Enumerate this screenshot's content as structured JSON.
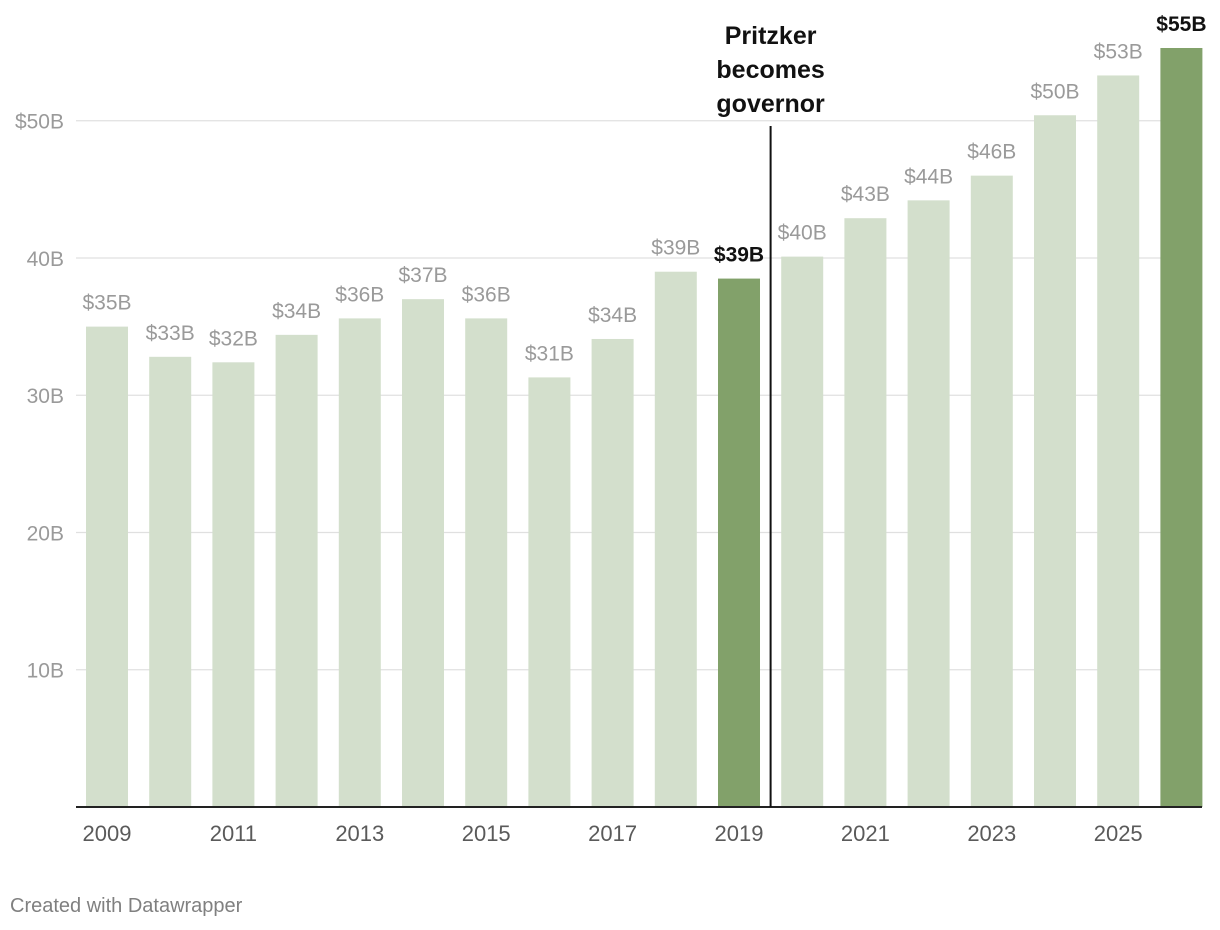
{
  "colors": {
    "bar": "#d3dfcc",
    "highlight": "#82a16a"
  },
  "chart_data": {
    "type": "bar",
    "categories": [
      "2009",
      "2010",
      "2011",
      "2012",
      "2013",
      "2014",
      "2015",
      "2016",
      "2017",
      "2018",
      "2019",
      "2020",
      "2021",
      "2022",
      "2023",
      "2024",
      "2025",
      "2026"
    ],
    "values": [
      35.0,
      32.8,
      32.4,
      34.4,
      35.6,
      37.0,
      35.6,
      31.3,
      34.1,
      39.0,
      38.5,
      40.1,
      42.9,
      44.2,
      46.0,
      50.4,
      53.3,
      55.3
    ],
    "value_labels": [
      "$35B",
      "$33B",
      "$32B",
      "$34B",
      "$36B",
      "$37B",
      "$36B",
      "$31B",
      "$34B",
      "$39B",
      "$39B",
      "$40B",
      "$43B",
      "$44B",
      "$46B",
      "$50B",
      "$53B",
      "$55B"
    ],
    "highlighted": [
      "2019",
      "2026"
    ],
    "x_tick_labels": [
      "2009",
      "2011",
      "2013",
      "2015",
      "2017",
      "2019",
      "2021",
      "2023",
      "2025"
    ],
    "y_ticks": [
      10,
      20,
      30,
      40,
      50
    ],
    "y_tick_labels": [
      "10B",
      "20B",
      "30B",
      "40B",
      "$50B"
    ],
    "ylim": [
      0,
      55.3
    ],
    "annotation": {
      "lines": [
        "Pritzker",
        "becomes",
        "governor"
      ],
      "between": [
        "2019",
        "2020"
      ]
    },
    "title": "",
    "xlabel": "",
    "ylabel": ""
  },
  "footer": {
    "credit": "Created with Datawrapper"
  }
}
